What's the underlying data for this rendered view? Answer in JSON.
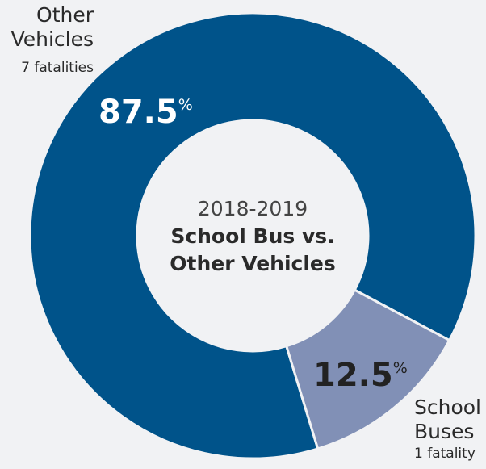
{
  "chart_data": {
    "type": "donut",
    "center_subtitle": "2018-2019",
    "center_title": "School Bus vs. Other Vehicles",
    "categories": [
      "Other Vehicles",
      "School Buses"
    ],
    "details": [
      "7 fatalities",
      "1 fatality"
    ],
    "values": [
      87.5,
      12.5
    ],
    "value_labels": [
      "87.5%",
      "12.5%"
    ],
    "colors": [
      "#00538a",
      "#8190b6"
    ]
  }
}
